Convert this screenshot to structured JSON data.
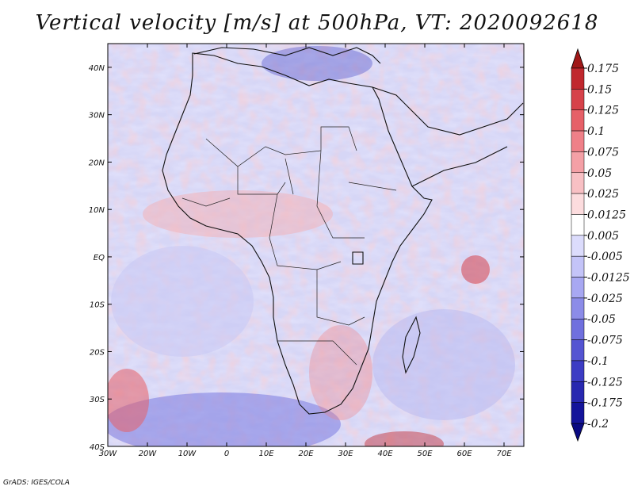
{
  "title": "Vertical velocity [m/s] at 500hPa, VT: 2020092618",
  "credit": "GrADS: IGES/COLA",
  "map": {
    "lon_range": [
      -30,
      75
    ],
    "lat_range": [
      -40,
      45
    ],
    "lon_ticks": [
      {
        "value": -30,
        "label": "30W"
      },
      {
        "value": -20,
        "label": "20W"
      },
      {
        "value": -10,
        "label": "10W"
      },
      {
        "value": 0,
        "label": "0"
      },
      {
        "value": 10,
        "label": "10E"
      },
      {
        "value": 20,
        "label": "20E"
      },
      {
        "value": 30,
        "label": "30E"
      },
      {
        "value": 40,
        "label": "40E"
      },
      {
        "value": 50,
        "label": "50E"
      },
      {
        "value": 60,
        "label": "60E"
      },
      {
        "value": 70,
        "label": "70E"
      }
    ],
    "lat_ticks": [
      {
        "value": 40,
        "label": "40N"
      },
      {
        "value": 30,
        "label": "30N"
      },
      {
        "value": 20,
        "label": "20N"
      },
      {
        "value": 10,
        "label": "10N"
      },
      {
        "value": 0,
        "label": "EQ"
      },
      {
        "value": -10,
        "label": "10S"
      },
      {
        "value": -20,
        "label": "20S"
      },
      {
        "value": -30,
        "label": "30S"
      },
      {
        "value": -40,
        "label": "40S"
      }
    ]
  },
  "colorbar": {
    "levels": [
      "0.175",
      "0.15",
      "0.125",
      "0.1",
      "0.075",
      "0.05",
      "0.025",
      "0.0125",
      "0.005",
      "-0.005",
      "-0.0125",
      "-0.025",
      "-0.05",
      "-0.075",
      "-0.1",
      "-0.125",
      "-0.175",
      "-0.2"
    ],
    "colors": [
      "#a01818",
      "#c0282e",
      "#d6424a",
      "#e66068",
      "#ef8088",
      "#f4a0a6",
      "#f8c0c4",
      "#fcdcde",
      "#ffffff",
      "#dcdcfc",
      "#c4c4f8",
      "#a8a8f2",
      "#8c8ce8",
      "#7070de",
      "#5454d2",
      "#3c3cc4",
      "#2828b0",
      "#14149a",
      "#0a0a82"
    ]
  }
}
